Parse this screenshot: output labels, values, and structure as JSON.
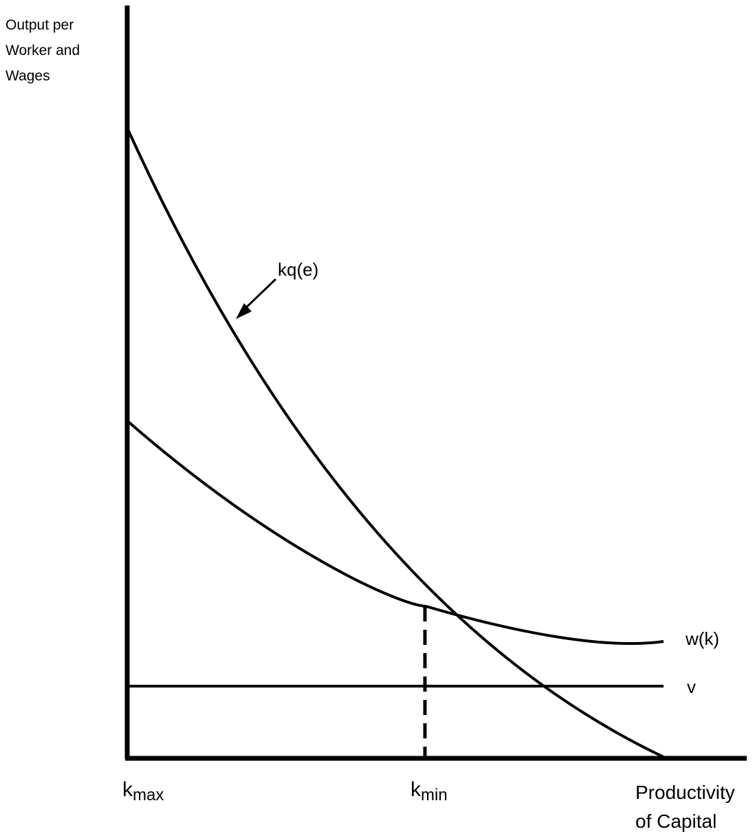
{
  "axis_labels": {
    "y": [
      "Output per",
      "Worker and",
      "Wages"
    ],
    "x": [
      "Productivity",
      "of Capital"
    ]
  },
  "tick_labels": {
    "kmax": {
      "base": "k",
      "sub": "max"
    },
    "kmin": {
      "base": "k",
      "sub": "min"
    }
  },
  "curve_labels": {
    "kq": "kq(e)",
    "w": "w(k)",
    "v": "v"
  },
  "colors": {
    "ink": "#000000",
    "background": "#ffffff"
  }
}
